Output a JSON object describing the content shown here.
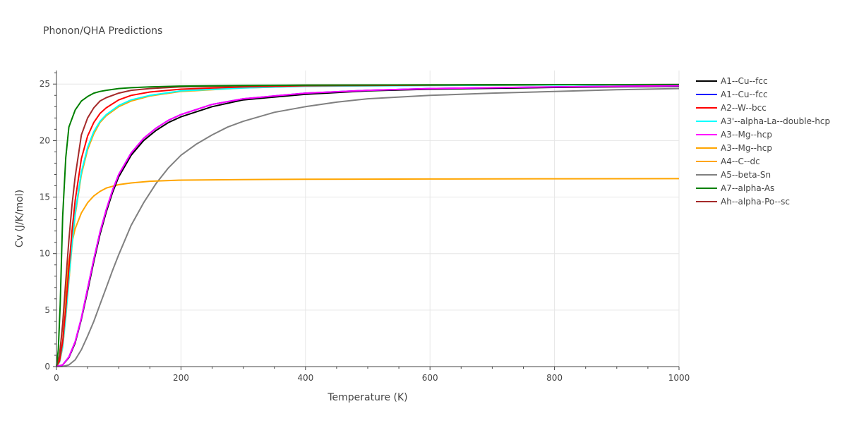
{
  "chart_data": {
    "type": "line",
    "title": "Phonon/QHA Predictions",
    "xlabel": "Temperature (K)",
    "ylabel": "Cv (J/K/mol)",
    "xlim": [
      0,
      1000
    ],
    "ylim": [
      0,
      26.2
    ],
    "xticks": [
      0,
      200,
      400,
      600,
      800,
      1000
    ],
    "yticks": [
      0,
      5,
      10,
      15,
      20,
      25
    ],
    "grid": true,
    "legend_position": "right",
    "series": [
      {
        "name": "A1--Cu--fcc",
        "color": "#000000",
        "x": [
          0,
          10,
          20,
          30,
          40,
          50,
          60,
          70,
          80,
          90,
          100,
          120,
          140,
          160,
          180,
          200,
          250,
          300,
          400,
          500,
          600,
          800,
          1000
        ],
        "y": [
          0,
          0.15,
          0.8,
          2.1,
          4.2,
          6.7,
          9.3,
          11.7,
          13.7,
          15.4,
          16.8,
          18.7,
          20.0,
          20.9,
          21.6,
          22.1,
          23.0,
          23.6,
          24.1,
          24.4,
          24.55,
          24.7,
          24.8
        ]
      },
      {
        "name": "A1--Cu--fcc",
        "color": "#0000ff",
        "x": [
          0,
          10,
          20,
          30,
          40,
          50,
          60,
          70,
          80,
          90,
          100,
          120,
          140,
          160,
          180,
          200,
          250,
          300,
          400,
          500,
          600,
          800,
          1000
        ],
        "y": [
          0,
          0.15,
          0.85,
          2.2,
          4.3,
          6.9,
          9.5,
          11.9,
          13.9,
          15.6,
          17.0,
          18.9,
          20.2,
          21.1,
          21.8,
          22.3,
          23.2,
          23.7,
          24.2,
          24.45,
          24.6,
          24.75,
          24.85
        ]
      },
      {
        "name": "A2--W--bcc",
        "color": "#ff0000",
        "x": [
          0,
          5,
          10,
          15,
          20,
          25,
          30,
          40,
          50,
          60,
          70,
          80,
          100,
          120,
          150,
          200,
          300,
          400,
          600,
          800,
          1000
        ],
        "y": [
          0,
          0.5,
          2.2,
          5.2,
          8.7,
          12.0,
          14.7,
          18.4,
          20.4,
          21.6,
          22.4,
          22.9,
          23.6,
          24.0,
          24.3,
          24.55,
          24.75,
          24.85,
          24.9,
          24.95,
          24.95
        ]
      },
      {
        "name": "A3'--alpha-La--double-hcp",
        "color": "#00ffff",
        "x": [
          0,
          5,
          10,
          15,
          20,
          25,
          30,
          40,
          50,
          60,
          70,
          80,
          100,
          120,
          150,
          200,
          300,
          400,
          600,
          800,
          1000
        ],
        "y": [
          0,
          0.4,
          1.8,
          4.5,
          7.8,
          10.9,
          13.6,
          17.2,
          19.4,
          20.8,
          21.7,
          22.3,
          23.1,
          23.6,
          24.0,
          24.4,
          24.65,
          24.8,
          24.88,
          24.92,
          24.95
        ]
      },
      {
        "name": "A3--Mg--hcp",
        "color": "#ff00ff",
        "x": [
          0,
          10,
          20,
          30,
          40,
          50,
          60,
          70,
          80,
          90,
          100,
          120,
          140,
          160,
          180,
          200,
          250,
          300,
          400,
          500,
          600,
          800,
          1000
        ],
        "y": [
          0,
          0.15,
          0.85,
          2.2,
          4.3,
          6.9,
          9.5,
          11.9,
          13.9,
          15.6,
          17.0,
          18.9,
          20.2,
          21.1,
          21.8,
          22.3,
          23.2,
          23.7,
          24.2,
          24.45,
          24.6,
          24.75,
          24.85
        ]
      },
      {
        "name": "A3--Mg--hcp",
        "color": "#ffa500",
        "x": [
          0,
          5,
          10,
          15,
          20,
          25,
          30,
          40,
          50,
          60,
          70,
          80,
          100,
          120,
          150,
          200,
          300,
          400,
          600,
          800,
          1000
        ],
        "y": [
          0,
          0.4,
          1.7,
          4.4,
          7.6,
          10.7,
          13.4,
          17.0,
          19.2,
          20.6,
          21.6,
          22.2,
          23.0,
          23.5,
          23.95,
          24.35,
          24.65,
          24.8,
          24.88,
          24.92,
          24.95
        ]
      },
      {
        "name": "A4--C--dc",
        "color": "#ffa500",
        "x": [
          0,
          5,
          10,
          15,
          20,
          25,
          30,
          40,
          50,
          60,
          70,
          80,
          100,
          120,
          150,
          200,
          300,
          400,
          600,
          800,
          1000
        ],
        "y": [
          0,
          1.0,
          3.6,
          6.8,
          9.3,
          11.0,
          12.2,
          13.6,
          14.5,
          15.1,
          15.5,
          15.8,
          16.1,
          16.25,
          16.4,
          16.5,
          16.55,
          16.58,
          16.6,
          16.62,
          16.63
        ]
      },
      {
        "name": "A5--beta-Sn",
        "color": "#808080",
        "x": [
          0,
          10,
          20,
          30,
          40,
          50,
          60,
          70,
          80,
          90,
          100,
          120,
          140,
          160,
          180,
          200,
          225,
          250,
          275,
          300,
          350,
          400,
          450,
          500,
          600,
          700,
          800,
          900,
          1000
        ],
        "y": [
          0,
          0.02,
          0.15,
          0.6,
          1.5,
          2.7,
          4.0,
          5.5,
          7.0,
          8.5,
          9.9,
          12.5,
          14.5,
          16.2,
          17.6,
          18.7,
          19.7,
          20.5,
          21.2,
          21.7,
          22.5,
          23.0,
          23.4,
          23.7,
          24.0,
          24.2,
          24.35,
          24.5,
          24.6
        ]
      },
      {
        "name": "A7--alpha-As",
        "color": "#008000",
        "x": [
          0,
          3,
          6,
          10,
          15,
          20,
          30,
          40,
          50,
          60,
          70,
          80,
          100,
          120,
          150,
          200,
          300,
          400,
          600,
          800,
          1000
        ],
        "y": [
          0,
          1.5,
          5.5,
          13.3,
          18.5,
          21.2,
          22.7,
          23.5,
          23.9,
          24.2,
          24.35,
          24.45,
          24.6,
          24.68,
          24.75,
          24.82,
          24.88,
          24.9,
          24.93,
          24.95,
          24.96
        ]
      },
      {
        "name": "Ah--alpha-Po--sc",
        "color": "#a52a2a",
        "x": [
          0,
          5,
          10,
          15,
          20,
          25,
          30,
          40,
          50,
          60,
          70,
          80,
          100,
          120,
          150,
          200,
          300,
          400,
          600,
          800,
          1000
        ],
        "y": [
          0,
          1.0,
          3.8,
          7.6,
          11.2,
          14.3,
          16.8,
          20.5,
          22.0,
          22.9,
          23.5,
          23.8,
          24.2,
          24.45,
          24.6,
          24.75,
          24.85,
          24.9,
          24.93,
          24.95,
          24.96
        ]
      }
    ]
  }
}
